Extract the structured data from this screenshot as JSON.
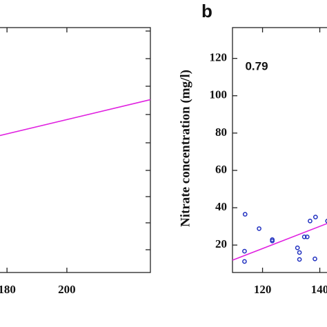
{
  "chart_data": [
    {
      "type": "line",
      "xlim": [
        177.2,
        227.9
      ],
      "xticks": [
        180,
        200
      ],
      "ylim": [
        5.3,
        136.5
      ],
      "series": [
        {
          "color": "#e020e0",
          "x": [
            177.2,
            227.9
          ],
          "values": [
            78.5,
            97.9
          ]
        }
      ]
    },
    {
      "type": "scatter",
      "title": "b",
      "y_label": "Nitrate concentration (mg/l)",
      "annotation": "0.79",
      "xlim": [
        109.5,
        143
      ],
      "xticks": [
        120,
        140
      ],
      "ylim": [
        5.3,
        136.5
      ],
      "yticks": [
        20,
        40,
        60,
        80,
        100,
        120
      ],
      "point_color": "#2030c0",
      "x": [
        113.9,
        113.7,
        113.7,
        118.8,
        123.4,
        123.4,
        132.2,
        132.9,
        132.9,
        134.6,
        135.6,
        136.6,
        138.5,
        138.3,
        142.7
      ],
      "values": [
        36.5,
        16.7,
        11.2,
        28.8,
        22.9,
        22.2,
        18.5,
        16,
        12.3,
        24.4,
        24.4,
        32.9,
        35,
        12.6,
        32.9
      ],
      "fit": {
        "color": "#e020e0",
        "x": [
          109.5,
          143
        ],
        "values": [
          11.9,
          31.8
        ]
      }
    }
  ]
}
